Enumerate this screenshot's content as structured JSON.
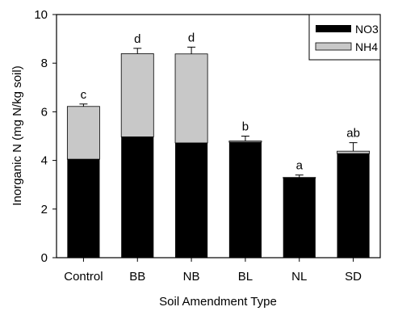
{
  "chart_data": {
    "type": "bar",
    "stacked": true,
    "categories": [
      "Control",
      "BB",
      "NB",
      "BL",
      "NL",
      "SD"
    ],
    "series": [
      {
        "name": "NO3",
        "color": "#000000",
        "values": [
          4.05,
          4.97,
          4.72,
          4.75,
          3.28,
          4.28
        ]
      },
      {
        "name": "NH4",
        "color": "#c8c8c8",
        "values": [
          2.17,
          3.42,
          3.66,
          0.05,
          0.02,
          0.1
        ]
      }
    ],
    "error_bar": [
      0.1,
      0.22,
      0.28,
      0.2,
      0.1,
      0.35
    ],
    "letters": [
      "c",
      "d",
      "d",
      "b",
      "a",
      "ab"
    ],
    "xlabel": "Soil Amendment Type",
    "ylabel": "Inorganic N (mg N/kg soil)",
    "ylim": [
      0,
      10
    ],
    "yticks": [
      "0",
      "2",
      "4",
      "6",
      "8",
      "10"
    ],
    "grid": false,
    "legend_position": "top-right"
  }
}
